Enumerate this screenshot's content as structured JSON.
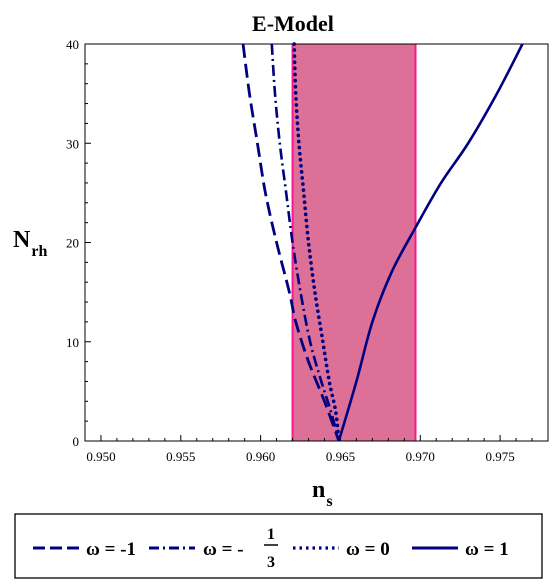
{
  "chart_data": {
    "type": "line",
    "title": "E-Model",
    "xlabel": {
      "main": "n",
      "sub": "s"
    },
    "ylabel": {
      "main": "N",
      "sub": "rh"
    },
    "xlim": [
      0.949,
      0.978
    ],
    "ylim": [
      0,
      40
    ],
    "xticks": [
      "0.950",
      "0.955",
      "0.960",
      "0.965",
      "0.970",
      "0.975"
    ],
    "xtick_values": [
      0.95,
      0.955,
      0.96,
      0.965,
      0.97,
      0.975
    ],
    "yticks": [
      "0",
      "10",
      "20",
      "30",
      "40"
    ],
    "ytick_values": [
      0,
      10,
      20,
      30,
      40
    ],
    "band": {
      "x_min": 0.962,
      "x_max": 0.9697,
      "color": "#dc7096",
      "edge_color": "#ff1493"
    },
    "curve_color": "#000080",
    "series": [
      {
        "name": "ω = -1",
        "dash": "long-dash",
        "points": [
          [
            0.9589,
            40
          ],
          [
            0.9593,
            35
          ],
          [
            0.9598,
            30
          ],
          [
            0.9603,
            25
          ],
          [
            0.961,
            20
          ],
          [
            0.9618,
            15
          ],
          [
            0.9622,
            12
          ],
          [
            0.963,
            8
          ],
          [
            0.964,
            4
          ],
          [
            0.9649,
            0
          ]
        ]
      },
      {
        "name": "ω = -1/3",
        "dash": "dash-dot",
        "points": [
          [
            0.9607,
            40
          ],
          [
            0.9609,
            35
          ],
          [
            0.9612,
            30
          ],
          [
            0.9616,
            25
          ],
          [
            0.962,
            20
          ],
          [
            0.9625,
            15
          ],
          [
            0.9631,
            10
          ],
          [
            0.9638,
            6
          ],
          [
            0.9644,
            3
          ],
          [
            0.9649,
            0
          ]
        ]
      },
      {
        "name": "ω = 0",
        "dash": "dotted",
        "points": [
          [
            0.9621,
            40
          ],
          [
            0.9622,
            35
          ],
          [
            0.9624,
            30
          ],
          [
            0.9627,
            25
          ],
          [
            0.963,
            20
          ],
          [
            0.9634,
            15
          ],
          [
            0.9639,
            10
          ],
          [
            0.9643,
            6
          ],
          [
            0.9647,
            3
          ],
          [
            0.9649,
            0
          ]
        ]
      },
      {
        "name": "ω = 1",
        "dash": "solid",
        "points": [
          [
            0.9649,
            0
          ],
          [
            0.966,
            6
          ],
          [
            0.967,
            12
          ],
          [
            0.9682,
            17
          ],
          [
            0.9697,
            21.5
          ],
          [
            0.9713,
            26
          ],
          [
            0.973,
            30
          ],
          [
            0.9748,
            35
          ],
          [
            0.9764,
            40
          ]
        ]
      }
    ],
    "legend": {
      "placement": "bottom",
      "entries": [
        {
          "prefix": "ω = -1",
          "dash": "long-dash"
        },
        {
          "prefix": "ω = -",
          "num": "1",
          "den": "3",
          "dash": "dash-dot"
        },
        {
          "prefix": "ω = 0",
          "dash": "dotted"
        },
        {
          "prefix": "ω = 1",
          "dash": "solid"
        }
      ]
    }
  }
}
